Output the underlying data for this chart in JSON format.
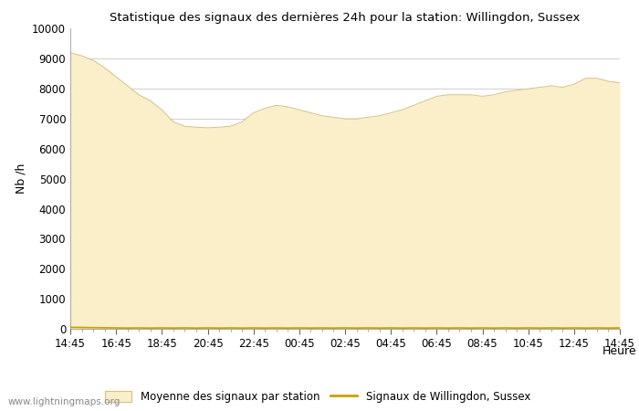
{
  "title": "Statistique des signaux des dernières 24h pour la station: Willingdon, Sussex",
  "xlabel": "Heure",
  "ylabel": "Nb /h",
  "xlim_labels": [
    "14:45",
    "16:45",
    "18:45",
    "20:45",
    "22:45",
    "00:45",
    "02:45",
    "04:45",
    "06:45",
    "08:45",
    "10:45",
    "12:45",
    "14:45"
  ],
  "ylim": [
    0,
    10000
  ],
  "yticks": [
    0,
    1000,
    2000,
    3000,
    4000,
    5000,
    6000,
    7000,
    8000,
    9000,
    10000
  ],
  "fill_color": "#FAEFC8",
  "fill_edge_color": "#D4C08A",
  "line_color": "#C8A000",
  "bg_color": "#FFFFFF",
  "grid_color": "#C8C8C8",
  "watermark": "www.lightningmaps.org",
  "legend_fill": "Moyenne des signaux par station",
  "legend_line": "Signaux de Willingdon, Sussex",
  "fill_values": [
    9200,
    9100,
    8950,
    8700,
    8400,
    8100,
    7800,
    7600,
    7300,
    6900,
    6750,
    6720,
    6700,
    6720,
    6750,
    6900,
    7200,
    7350,
    7450,
    7400,
    7300,
    7200,
    7100,
    7050,
    7000,
    7000,
    7050,
    7100,
    7200,
    7300,
    7450,
    7600,
    7750,
    7800,
    7800,
    7800,
    7750,
    7800,
    7900,
    7950,
    8000,
    8050,
    8100,
    8050,
    8150,
    8350,
    8350,
    8250,
    8200
  ],
  "line_values": [
    50,
    45,
    40,
    35,
    30,
    25,
    30,
    25,
    30,
    25,
    30,
    25,
    30,
    25,
    30,
    25,
    30,
    25,
    30,
    25,
    30,
    25,
    30,
    25,
    30,
    25,
    30,
    25,
    30,
    25,
    30,
    25,
    30,
    25,
    30,
    25,
    30,
    25,
    30,
    25,
    30,
    25,
    30,
    25,
    30,
    25,
    30,
    25,
    30
  ]
}
